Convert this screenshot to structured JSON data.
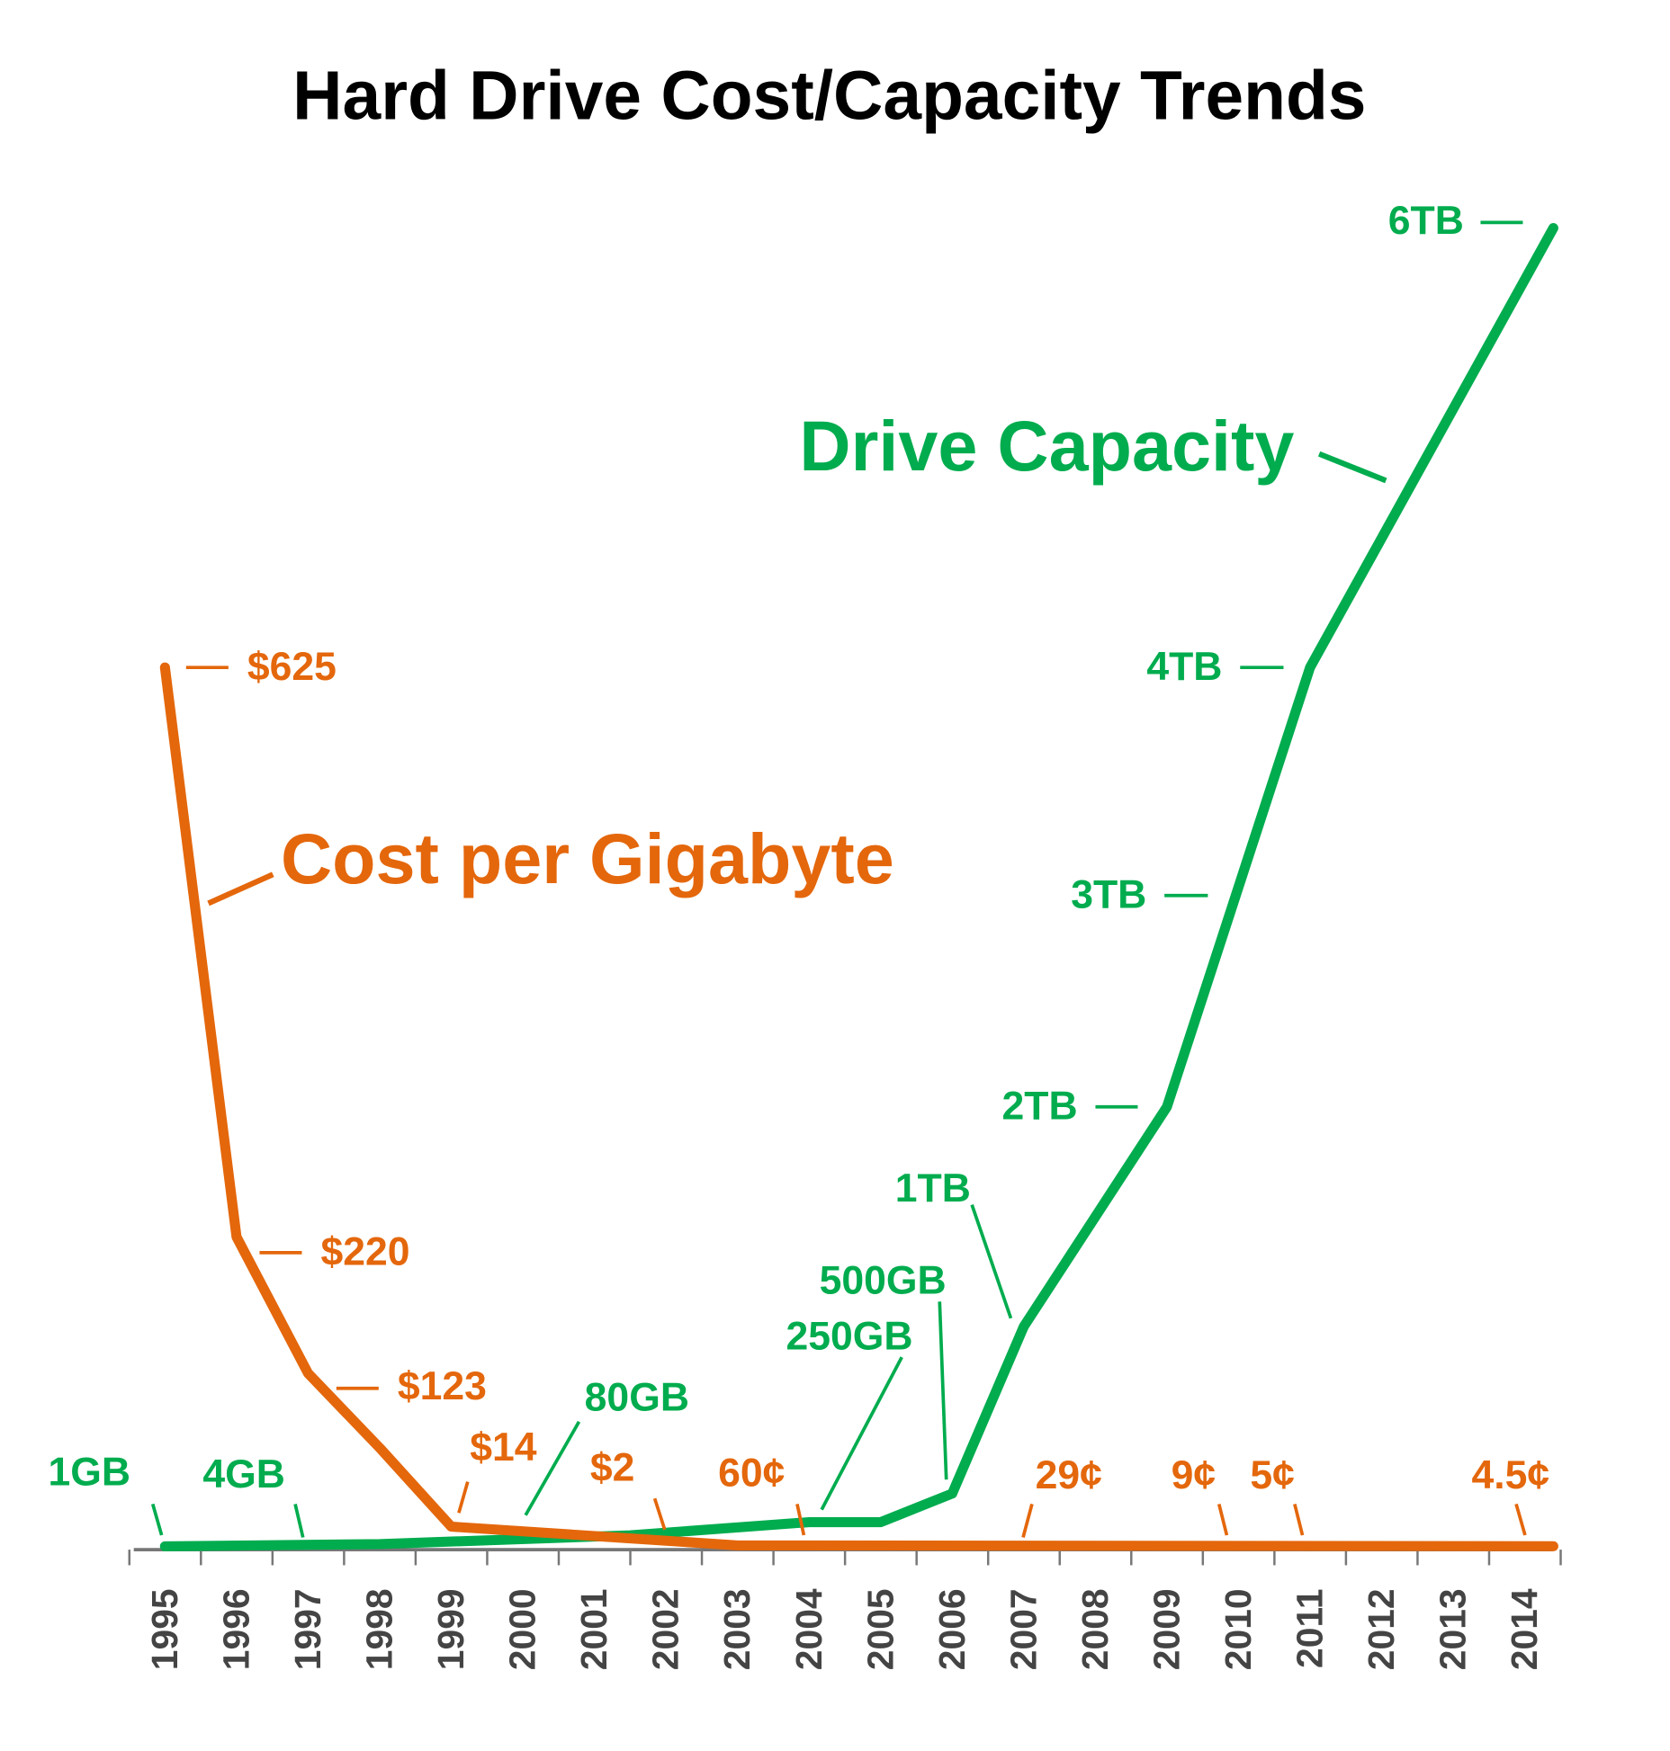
{
  "chart_data": {
    "type": "line",
    "title": "Hard Drive Cost/Capacity Trends",
    "x_tick_labels": [
      "1995",
      "1996",
      "1997",
      "1998",
      "1999",
      "2000",
      "2001",
      "2002",
      "2003",
      "2004",
      "2005",
      "2006",
      "2007",
      "2008",
      "2009",
      "2010",
      "2011",
      "2012",
      "2013",
      "2014"
    ],
    "grid": false,
    "colors": {
      "capacity": "#00AC4E",
      "cost": "#E4670C",
      "axis": "#777777"
    },
    "series": [
      {
        "name": "Drive Capacity",
        "unit": "TB",
        "x": [
          1995,
          1998,
          2001.5,
          2004,
          2005,
          2006,
          2007,
          2009,
          2011,
          2014.4
        ],
        "values": [
          0.0,
          0.01,
          0.05,
          0.11,
          0.11,
          0.24,
          1,
          2,
          4,
          6
        ]
      },
      {
        "name": "Cost per Gigabyte",
        "unit": "USD",
        "x": [
          1995,
          1996,
          1997,
          1998,
          1999,
          2003,
          2014.4
        ],
        "values": [
          625,
          220,
          123,
          70,
          14,
          0.6,
          0.045
        ]
      }
    ],
    "annotations": {
      "capacity": {
        "tb6": "6TB",
        "tb4": "4TB",
        "tb3": "3TB",
        "tb2": "2TB",
        "tb1": "1TB",
        "gb500": "500GB",
        "gb250": "250GB",
        "gb80": "80GB",
        "gb4": "4GB",
        "gb1": "1GB"
      },
      "cost": {
        "c625": "$625",
        "c220": "$220",
        "c123": "$123",
        "c14": "$14",
        "c2": "$2",
        "c60": "60¢",
        "c29": "29¢",
        "c9": "9¢",
        "c5": "5¢",
        "c45": "4.5¢"
      }
    }
  }
}
